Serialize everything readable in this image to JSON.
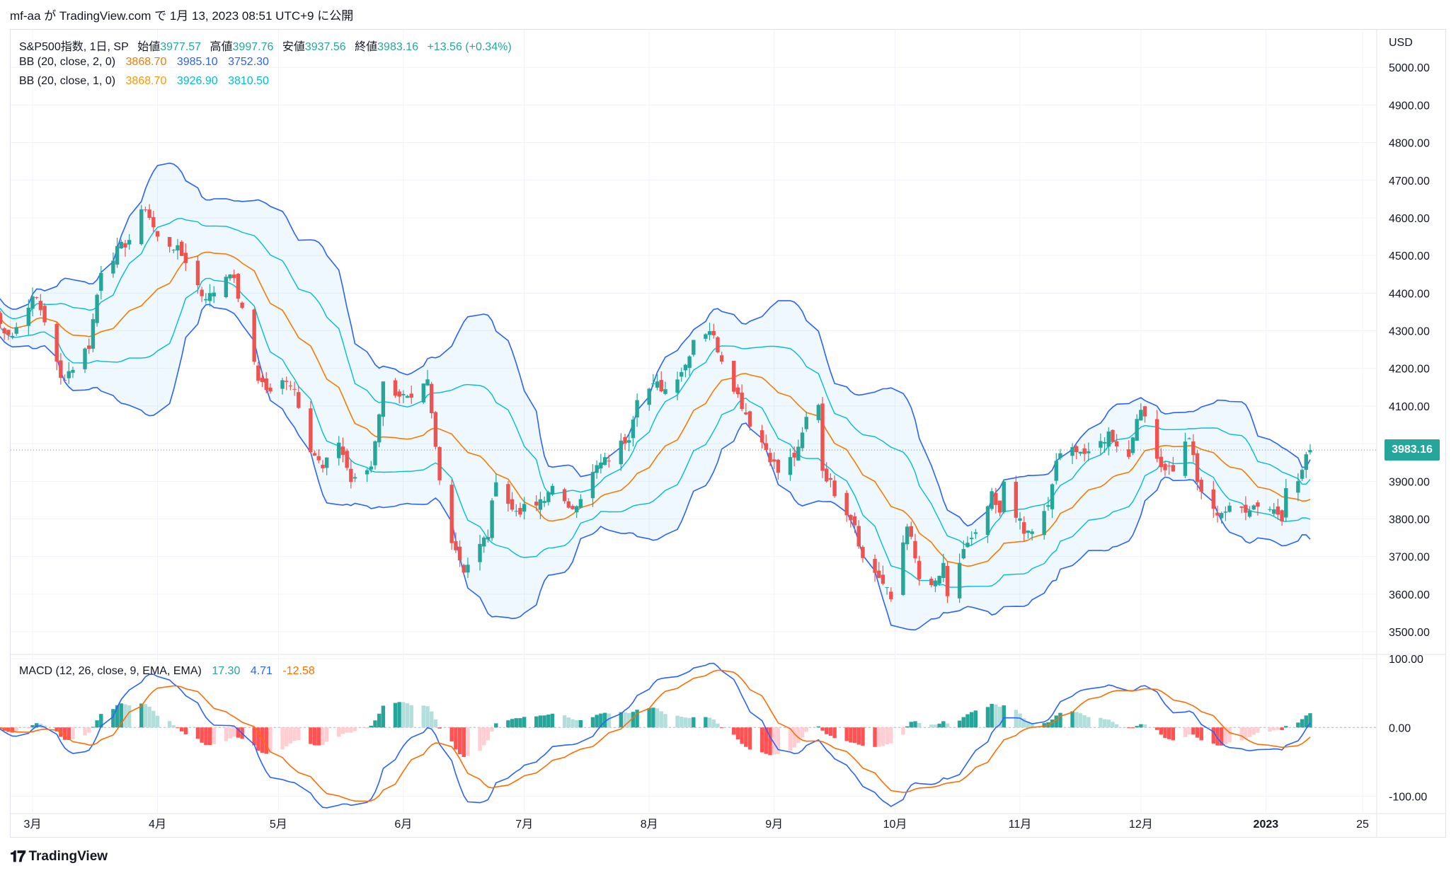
{
  "header": {
    "author": "mf-aa",
    "source_text": "が TradingView.com で 1月 13, 2023 08:51 UTC+9 に公開"
  },
  "legend": {
    "main": {
      "name": "S&P500指数, 1日, SP",
      "open_label": "始値",
      "open": "3977.57",
      "high_label": "高値",
      "high": "3997.76",
      "low_label": "安値",
      "low": "3937.56",
      "close_label": "終値",
      "close": "3983.16",
      "change": "+13.56 (+0.34%)"
    },
    "bb2": {
      "name": "BB (20, close, 2, 0)",
      "basis": "3868.70",
      "upper": "3985.10",
      "lower": "3752.30"
    },
    "bb1": {
      "name": "BB (20, close, 1, 0)",
      "basis": "3868.70",
      "upper": "3926.90",
      "lower": "3810.50"
    },
    "macd": {
      "name": "MACD (12, 26, close, 9, EMA, EMA)",
      "hist": "17.30",
      "macd": "4.71",
      "signal": "-12.58"
    }
  },
  "currency": "USD",
  "last_price_tag": "3983.16",
  "footer_brand": "TradingView",
  "colors": {
    "up": "#26a69a",
    "down": "#ef5350",
    "bb_basis": "#f57c00",
    "bb2_band": "#2962ff",
    "bb1_band": "#00bcd4",
    "macd_line": "#2962ff",
    "signal_line": "#ff6d00",
    "hist_up_strong": "#26a69a",
    "hist_up_weak": "#b2dfdb",
    "hist_down_strong": "#ff5252",
    "hist_down_weak": "#ffcdd2"
  },
  "chart_data": [
    {
      "type": "candlestick",
      "title": "S&P500指数, 1日, SP",
      "y_axis_ticks": [
        "5000.00",
        "4900.00",
        "4800.00",
        "4700.00",
        "4600.00",
        "4500.00",
        "4400.00",
        "4300.00",
        "4200.00",
        "4100.00",
        "4000.00",
        "3900.00",
        "3800.00",
        "3700.00",
        "3600.00",
        "3500.00"
      ],
      "ylim": [
        3440,
        5100
      ],
      "x_axis_ticks": [
        "3月",
        "4月",
        "5月",
        "6月",
        "7月",
        "8月",
        "9月",
        "10月",
        "11月",
        "12月",
        "2023",
        "25"
      ],
      "x_tick_dates": [
        "2022-03-01",
        "2022-04-01",
        "2022-05-01",
        "2022-06-01",
        "2022-07-01",
        "2022-08-01",
        "2022-09-01",
        "2022-10-01",
        "2022-11-01",
        "2022-12-01",
        "2023-01-01",
        "2023-01-25"
      ],
      "close_series": [
        [
          "2022-02-18",
          4350
        ],
        [
          "2022-02-22",
          4305
        ],
        [
          "2022-02-24",
          4288
        ],
        [
          "2022-02-28",
          4374
        ],
        [
          "2022-03-02",
          4386
        ],
        [
          "2022-03-04",
          4329
        ],
        [
          "2022-03-08",
          4170
        ],
        [
          "2022-03-11",
          4204
        ],
        [
          "2022-03-15",
          4262
        ],
        [
          "2022-03-18",
          4463
        ],
        [
          "2022-03-22",
          4512
        ],
        [
          "2022-03-25",
          4543
        ],
        [
          "2022-03-29",
          4631
        ],
        [
          "2022-04-01",
          4545
        ],
        [
          "2022-04-05",
          4525
        ],
        [
          "2022-04-08",
          4488
        ],
        [
          "2022-04-12",
          4397
        ],
        [
          "2022-04-14",
          4392
        ],
        [
          "2022-04-19",
          4462
        ],
        [
          "2022-04-21",
          4393
        ],
        [
          "2022-04-26",
          4175
        ],
        [
          "2022-04-29",
          4131
        ],
        [
          "2022-05-03",
          4175
        ],
        [
          "2022-05-05",
          4146
        ],
        [
          "2022-05-09",
          3991
        ],
        [
          "2022-05-12",
          3930
        ],
        [
          "2022-05-16",
          4008
        ],
        [
          "2022-05-19",
          3900
        ],
        [
          "2022-05-20",
          3901
        ],
        [
          "2022-05-24",
          3941
        ],
        [
          "2022-05-27",
          4158
        ],
        [
          "2022-05-31",
          4132
        ],
        [
          "2022-06-03",
          4108
        ],
        [
          "2022-06-07",
          4160
        ],
        [
          "2022-06-10",
          3901
        ],
        [
          "2022-06-13",
          3750
        ],
        [
          "2022-06-16",
          3666
        ],
        [
          "2022-06-22",
          3759
        ],
        [
          "2022-06-24",
          3912
        ],
        [
          "2022-06-28",
          3822
        ],
        [
          "2022-07-01",
          3825
        ],
        [
          "2022-07-06",
          3845
        ],
        [
          "2022-07-08",
          3899
        ],
        [
          "2022-07-12",
          3818
        ],
        [
          "2022-07-15",
          3863
        ],
        [
          "2022-07-19",
          3937
        ],
        [
          "2022-07-22",
          3961
        ],
        [
          "2022-07-27",
          4023
        ],
        [
          "2022-07-29",
          4130
        ],
        [
          "2022-08-03",
          4155
        ],
        [
          "2022-08-05",
          4145
        ],
        [
          "2022-08-10",
          4210
        ],
        [
          "2022-08-12",
          4280
        ],
        [
          "2022-08-16",
          4305
        ],
        [
          "2022-08-19",
          4228
        ],
        [
          "2022-08-23",
          4128
        ],
        [
          "2022-08-26",
          4057
        ],
        [
          "2022-08-30",
          3986
        ],
        [
          "2022-09-02",
          3924
        ],
        [
          "2022-09-07",
          3979
        ],
        [
          "2022-09-09",
          4067
        ],
        [
          "2022-09-12",
          4110
        ],
        [
          "2022-09-13",
          3932
        ],
        [
          "2022-09-16",
          3873
        ],
        [
          "2022-09-21",
          3789
        ],
        [
          "2022-09-23",
          3693
        ],
        [
          "2022-09-27",
          3647
        ],
        [
          "2022-09-30",
          3586
        ],
        [
          "2022-10-04",
          3791
        ],
        [
          "2022-10-07",
          3640
        ],
        [
          "2022-10-10",
          3612
        ],
        [
          "2022-10-13",
          3669
        ],
        [
          "2022-10-14",
          3583
        ],
        [
          "2022-10-18",
          3720
        ],
        [
          "2022-10-21",
          3752
        ],
        [
          "2022-10-25",
          3859
        ],
        [
          "2022-10-27",
          3807
        ],
        [
          "2022-10-28",
          3901
        ],
        [
          "2022-11-02",
          3759
        ],
        [
          "2022-11-04",
          3770
        ],
        [
          "2022-11-08",
          3828
        ],
        [
          "2022-11-10",
          3956
        ],
        [
          "2022-11-15",
          3991
        ],
        [
          "2022-11-18",
          3965
        ],
        [
          "2022-11-23",
          4027
        ],
        [
          "2022-11-28",
          3964
        ],
        [
          "2022-11-30",
          4080
        ],
        [
          "2022-12-02",
          4072
        ],
        [
          "2022-12-06",
          3941
        ],
        [
          "2022-12-09",
          3934
        ],
        [
          "2022-12-13",
          4020
        ],
        [
          "2022-12-15",
          3895
        ],
        [
          "2022-12-19",
          3817
        ],
        [
          "2022-12-22",
          3822
        ],
        [
          "2022-12-27",
          3829
        ],
        [
          "2022-12-30",
          3840
        ],
        [
          "2023-01-03",
          3825
        ],
        [
          "2023-01-05",
          3808
        ],
        [
          "2023-01-06",
          3895
        ],
        [
          "2023-01-09",
          3893
        ],
        [
          "2023-01-11",
          3970
        ],
        [
          "2023-01-12",
          3983
        ]
      ]
    },
    {
      "type": "line",
      "title": "MACD (12, 26, close, 9, EMA, EMA)",
      "y_axis_ticks": [
        "100.00",
        "0.00",
        "-100.00"
      ],
      "ylim": [
        -125,
        105
      ]
    }
  ]
}
